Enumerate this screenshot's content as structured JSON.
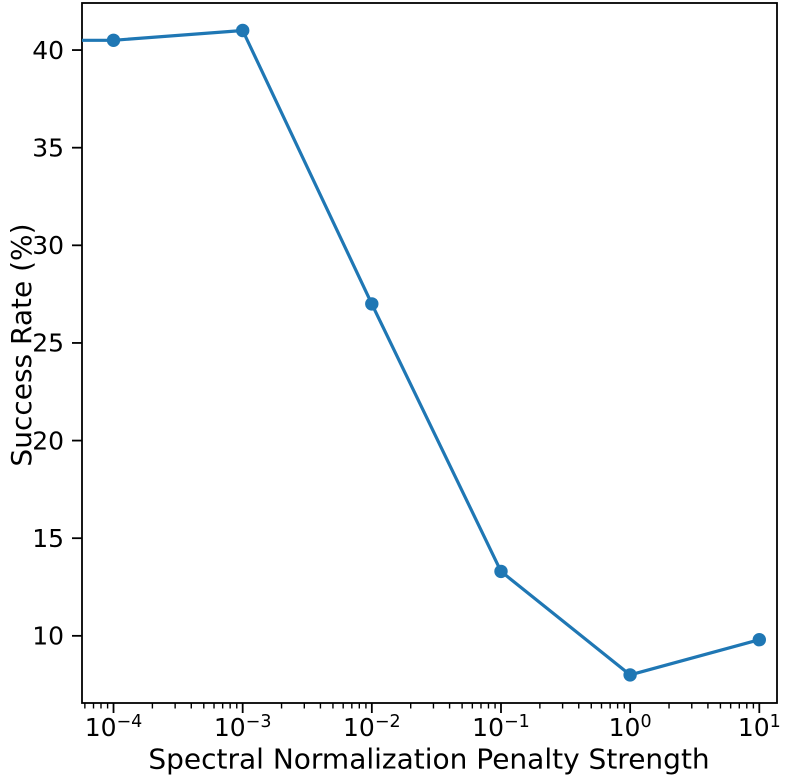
{
  "chart_data": {
    "type": "line",
    "title": "",
    "xlabel": "Spectral Normalization Penalty Strength",
    "ylabel": "Success Rate (%)",
    "xscale": "log10",
    "x": [
      0.0001,
      0.001,
      0.01,
      0.1,
      1.0,
      10.0
    ],
    "y": [
      40.5,
      41.0,
      27.0,
      13.3,
      8.0,
      9.8
    ],
    "series": [
      {
        "name": "success-rate",
        "values": [
          40.5,
          41.0,
          27.0,
          13.3,
          8.0,
          9.8
        ]
      }
    ],
    "line_color": "#1f77b4",
    "marker": "circle",
    "grid": false,
    "legend": false,
    "line_extends_to_left_edge": true,
    "axes": {
      "xlim_log10": [
        -4.244,
        1.137
      ],
      "ylim": [
        6.56,
        42.41
      ],
      "x_major_ticks": [
        {
          "log10": -4,
          "base": "10",
          "exp": "−4"
        },
        {
          "log10": -3,
          "base": "10",
          "exp": "−3"
        },
        {
          "log10": -2,
          "base": "10",
          "exp": "−2"
        },
        {
          "log10": -1,
          "base": "10",
          "exp": "−1"
        },
        {
          "log10": 0,
          "base": "10",
          "exp": "0"
        },
        {
          "log10": 1,
          "base": "10",
          "exp": "1"
        }
      ],
      "y_major_ticks": [
        "10",
        "15",
        "20",
        "25",
        "30",
        "35",
        "40"
      ]
    },
    "colors": {
      "spine": "#000000",
      "tick": "#000000",
      "text": "#000000",
      "background": "#ffffff"
    }
  }
}
